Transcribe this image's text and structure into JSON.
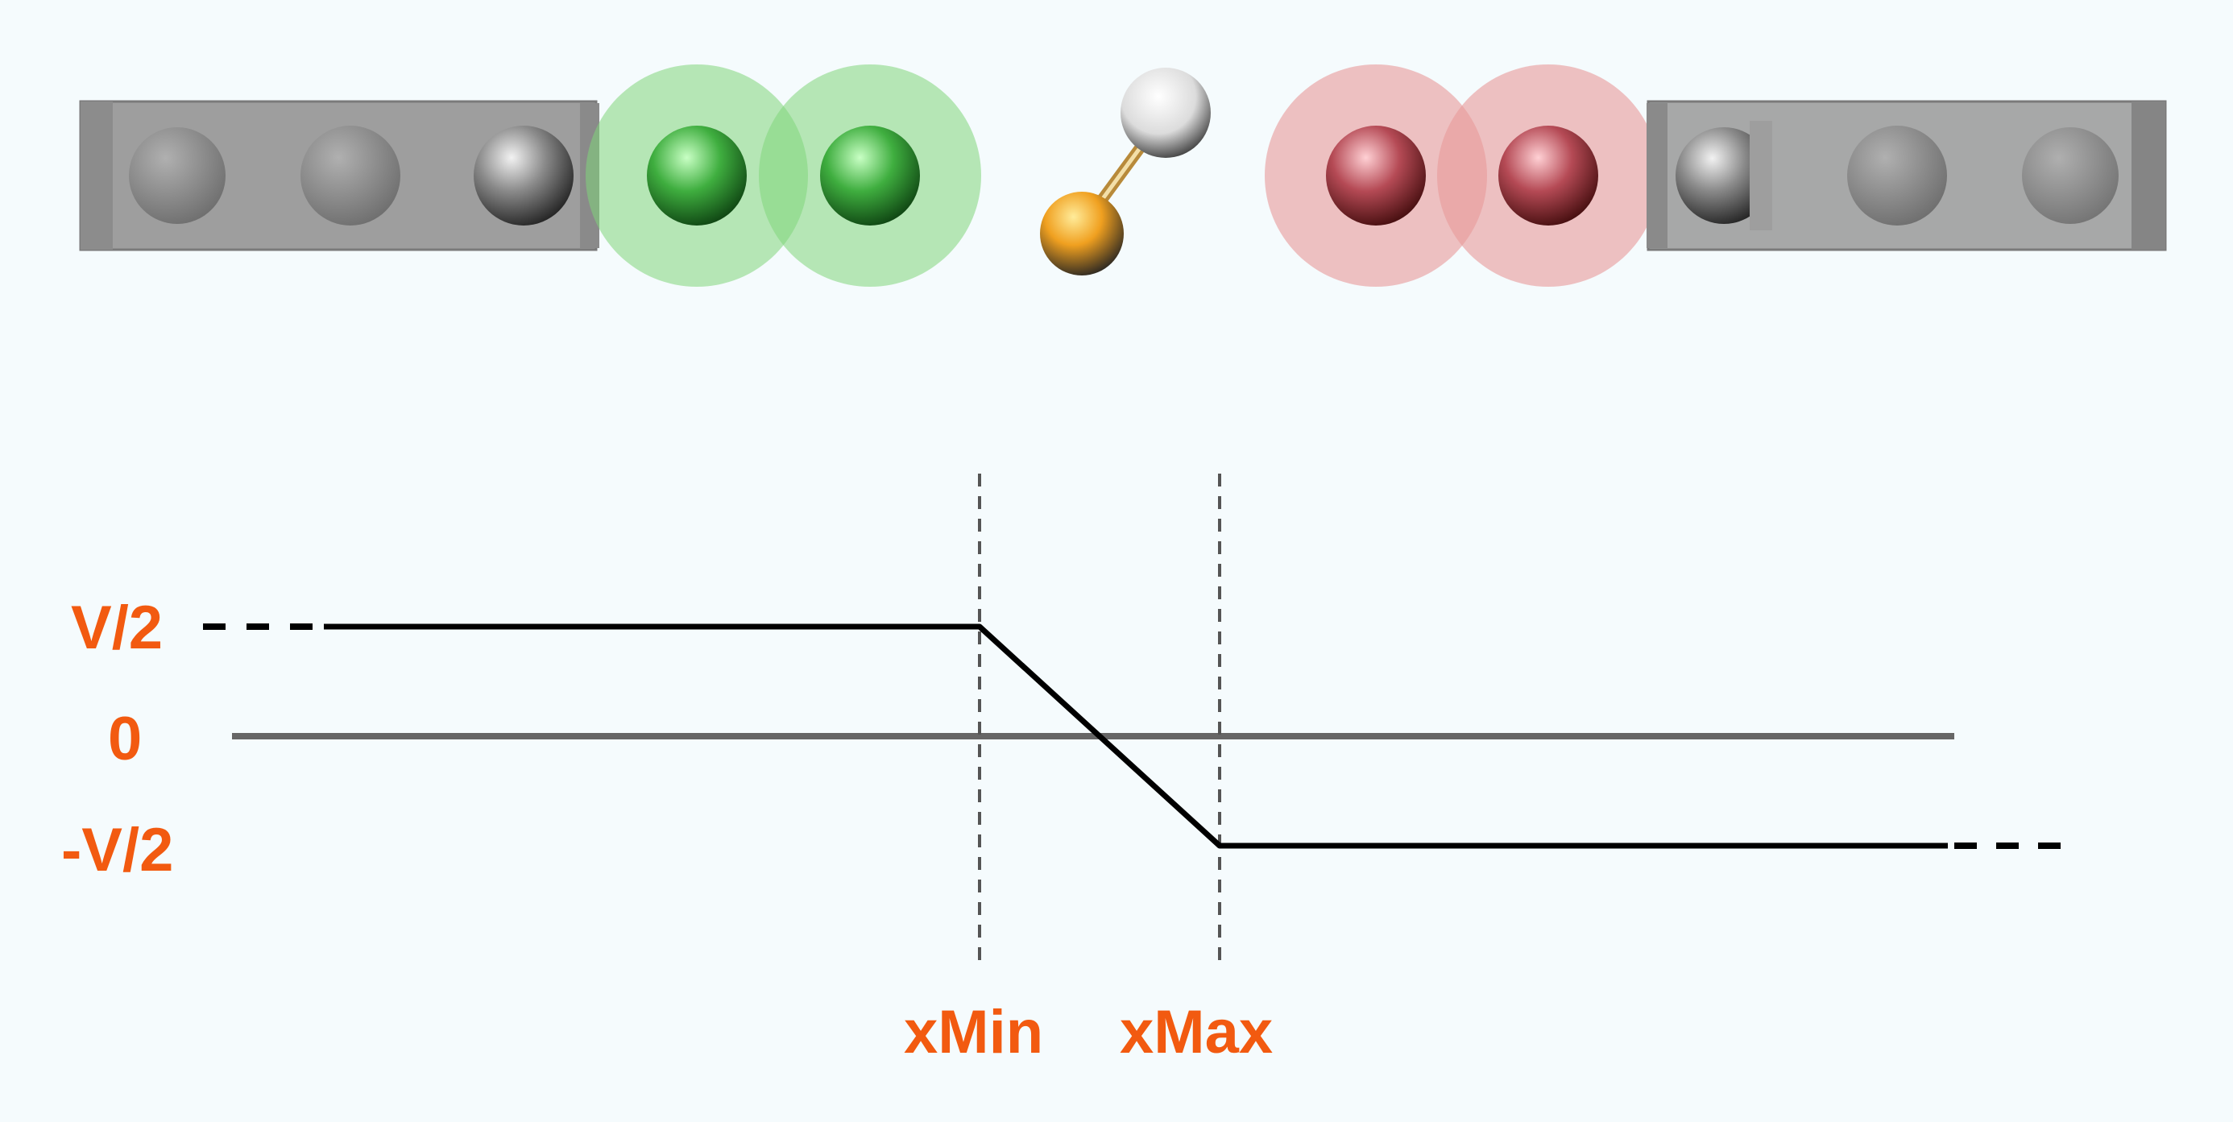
{
  "colors": {
    "background": "#f5fbfd",
    "label": "#f25a10",
    "potential_line": "#000000",
    "zero_line": "#666666",
    "guide_line": "#555555",
    "electrode": "#9e9e9e",
    "atom_gray": "#777777",
    "cathode_halo": "#7fd67a",
    "cathode_atom": "#1e8a2a",
    "anode_halo": "#e89a9a",
    "anode_atom": "#a52a35",
    "molecule_gold": "#f0a020",
    "molecule_white": "#f4f4f4"
  },
  "labels": {
    "v_high": "V/2",
    "v_zero": "0",
    "v_low": "-V/2",
    "x_min": "xMin",
    "x_max": "xMax"
  },
  "icons": {
    "left_electrode": "electrode-slab-icon",
    "right_electrode": "electrode-slab-icon",
    "molecule": "diatomic-molecule-icon"
  }
}
